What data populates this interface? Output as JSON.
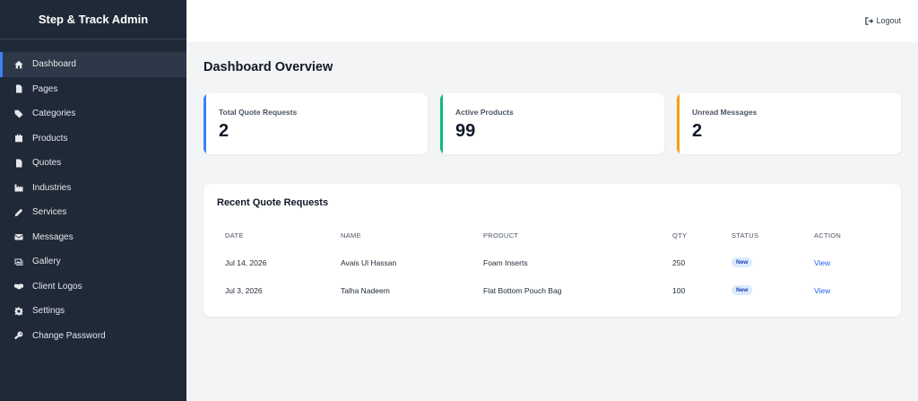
{
  "brand": "Step & Track Admin",
  "sidebar": {
    "items": [
      {
        "label": "Dashboard",
        "icon": "home-icon"
      },
      {
        "label": "Pages",
        "icon": "file-icon"
      },
      {
        "label": "Categories",
        "icon": "tags-icon"
      },
      {
        "label": "Products",
        "icon": "box-icon"
      },
      {
        "label": "Quotes",
        "icon": "document-icon"
      },
      {
        "label": "Industries",
        "icon": "industry-icon"
      },
      {
        "label": "Services",
        "icon": "pencil-icon"
      },
      {
        "label": "Messages",
        "icon": "envelope-icon"
      },
      {
        "label": "Gallery",
        "icon": "images-icon"
      },
      {
        "label": "Client Logos",
        "icon": "handshake-icon"
      },
      {
        "label": "Settings",
        "icon": "gear-icon"
      },
      {
        "label": "Change Password",
        "icon": "key-icon"
      }
    ]
  },
  "header": {
    "logout_label": "Logout"
  },
  "main": {
    "title": "Dashboard Overview",
    "stats": [
      {
        "label": "Total Quote Requests",
        "value": "2",
        "color": "#3b82f6"
      },
      {
        "label": "Active Products",
        "value": "99",
        "color": "#10b981"
      },
      {
        "label": "Unread Messages",
        "value": "2",
        "color": "#f59e0b"
      }
    ],
    "recent": {
      "title": "Recent Quote Requests",
      "columns": [
        "DATE",
        "NAME",
        "PRODUCT",
        "QTY",
        "STATUS",
        "ACTION"
      ],
      "rows": [
        {
          "date": "Jul 14, 2026",
          "name": "Avais Ul Hassan",
          "product": "Foam Inserts",
          "qty": "250",
          "status": "New",
          "action": "View"
        },
        {
          "date": "Jul 3, 2026",
          "name": "Talha Nadeem",
          "product": "Flat Bottom Pouch Bag",
          "qty": "100",
          "status": "New",
          "action": "View"
        }
      ]
    }
  }
}
